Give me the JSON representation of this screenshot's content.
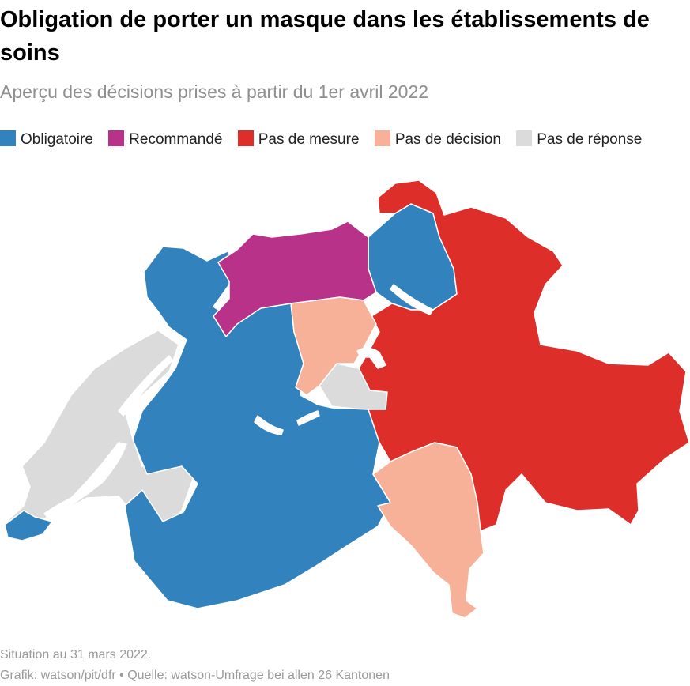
{
  "header": {
    "title": "Obligation de porter un masque dans les établissements de soins",
    "subtitle": "Aperçu des décisions prises à partir du 1er avril 2022"
  },
  "legend": [
    {
      "label": "Obligatoire",
      "color": "#3182bd"
    },
    {
      "label": "Recommandé",
      "color": "#b8328a"
    },
    {
      "label": "Pas de mesure",
      "color": "#dd2e29"
    },
    {
      "label": "Pas de décision",
      "color": "#f7b198"
    },
    {
      "label": "Pas de réponse",
      "color": "#dbdbdb"
    }
  ],
  "map": {
    "region": "Switzerland",
    "lakes_color": "#ffffff"
  },
  "footer": {
    "note": "Situation au 31 mars 2022.",
    "credit": "Grafik: watson/pit/dfr • Quelle: watson-Umfrage bei allen 26 Kantonen"
  }
}
